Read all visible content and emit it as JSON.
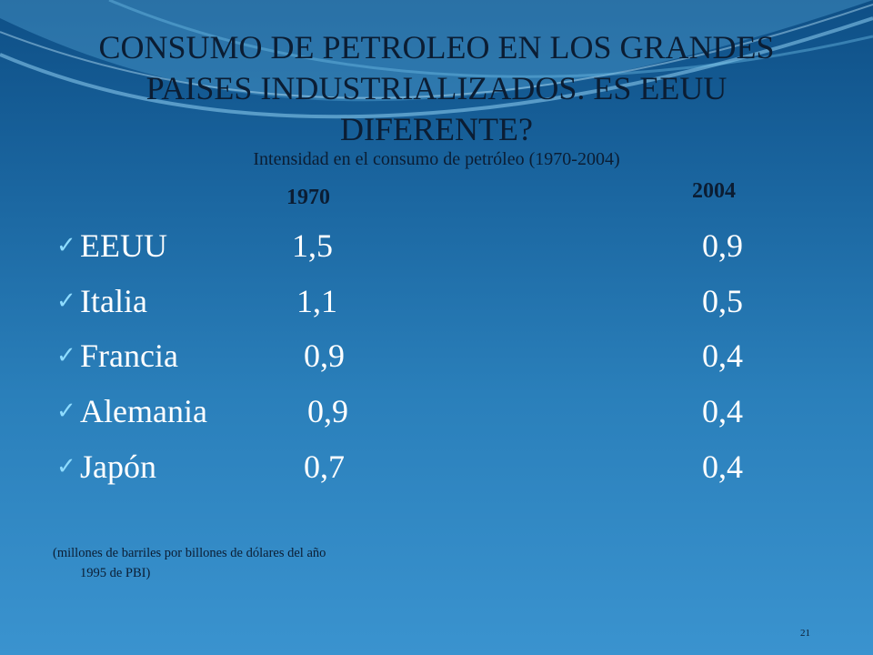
{
  "slide": {
    "title": "CONSUMO DE PETROLEO EN LOS GRANDES PAISES INDUSTRIALIZADOS.  ES EEUU DIFERENTE?",
    "subtitle": "Intensidad en el consumo de petróleo (1970-2004)",
    "columns": [
      "1970",
      "2004"
    ],
    "rows": [
      {
        "country": "EEUU",
        "v1970": "1,5",
        "v2004": "0,9"
      },
      {
        "country": "Italia",
        "v1970": "1,1",
        "v2004": "0,5"
      },
      {
        "country": "Francia",
        "v1970": "0,9",
        "v2004": "0,4"
      },
      {
        "country": "Alemania",
        "v1970": "0,9",
        "v2004": "0,4"
      },
      {
        "country": "Japón",
        "v1970": "0,7",
        "v2004": "0,4"
      }
    ],
    "note_line1": "(millones de barriles por billones  de dólares del año",
    "note_line2": "1995 de PBI)",
    "page_number": "21",
    "bullet_icon": "checkmark-icon",
    "colors": {
      "background_top": "#0e4f86",
      "background_bottom": "#3a93cf",
      "checkmark": "#8edcff",
      "values_text": "#ffffff",
      "header_text": "#0b1d33"
    }
  }
}
